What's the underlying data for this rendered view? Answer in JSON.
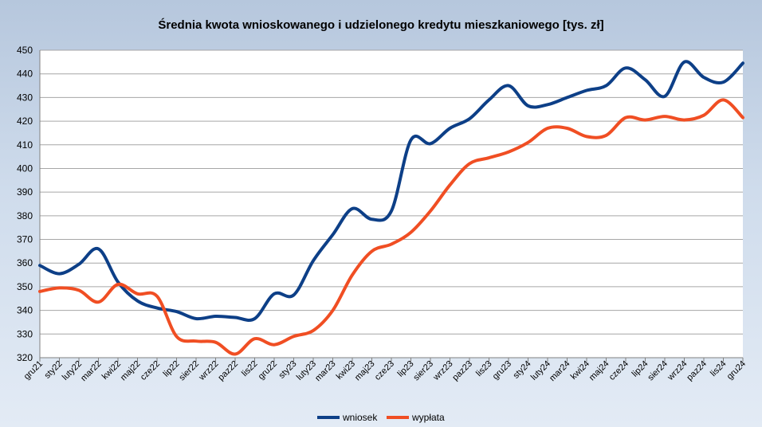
{
  "chart_data": {
    "type": "line",
    "title": "Średnia kwota wnioskowanego i udzielonego kredytu mieszkaniowego [tys. zł]",
    "xlabel": "",
    "ylabel": "",
    "ylim": [
      320,
      450
    ],
    "yticks": [
      320,
      330,
      340,
      350,
      360,
      370,
      380,
      390,
      400,
      410,
      420,
      430,
      440,
      450
    ],
    "grid": true,
    "legend_position": "bottom",
    "categories": [
      "gru21",
      "sty22",
      "luty22",
      "mar22",
      "kwi22",
      "maj22",
      "cze22",
      "lip22",
      "sier22",
      "wrz22",
      "paz22",
      "lis22",
      "gru22",
      "sty23",
      "luty23",
      "mar23",
      "kwi23",
      "maj23",
      "cze23",
      "lip23",
      "sier23",
      "wrz23",
      "paz23",
      "lis23",
      "gru23",
      "sty24",
      "luty24",
      "mar24",
      "kwi24",
      "maj24",
      "cze24",
      "lip24",
      "sier24",
      "wrz24",
      "paz24",
      "lis24",
      "gru24"
    ],
    "series": [
      {
        "name": "wniosek",
        "color": "#0d3f87",
        "values": [
          359,
          355.5,
          359.5,
          366,
          352,
          344,
          341,
          339.5,
          336.5,
          337.5,
          337,
          336.5,
          347,
          346.5,
          361,
          372,
          383,
          378.5,
          382,
          412,
          410.5,
          417,
          421,
          429,
          435,
          426.5,
          427,
          430,
          433,
          435,
          442.5,
          437.5,
          430.5,
          445,
          438.5,
          436.5,
          444.5
        ]
      },
      {
        "name": "wypłata",
        "color": "#f04e23",
        "values": [
          348,
          349.5,
          348.5,
          343.5,
          351,
          347,
          346,
          329,
          327,
          326.5,
          321.5,
          328,
          325.5,
          329,
          331.5,
          340,
          355,
          365,
          368,
          373,
          382,
          393,
          402,
          404.5,
          407,
          411,
          417,
          417,
          413.5,
          414,
          421.5,
          420.5,
          422,
          420.5,
          422.5,
          429,
          421.5
        ]
      }
    ]
  }
}
